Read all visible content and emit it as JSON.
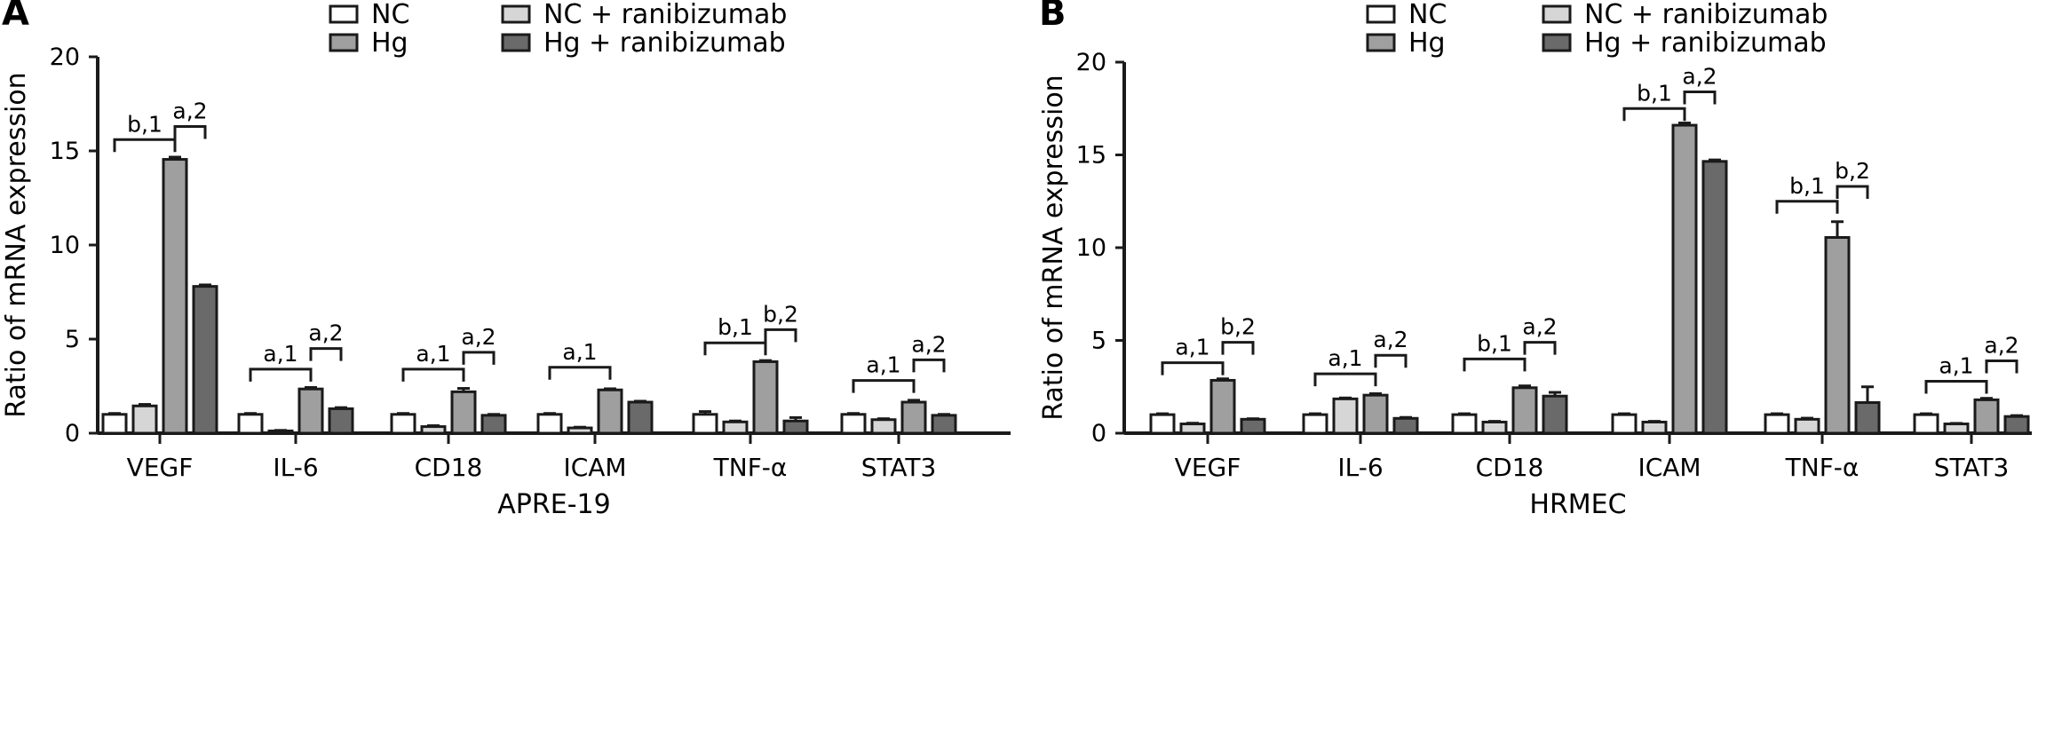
{
  "chart_data": [
    {
      "type": "bar",
      "panel_label": "A",
      "title": "",
      "xlabel": "APRE-19",
      "ylabel": "Ratio of  mRNA expression",
      "ylim": [
        0,
        20
      ],
      "yticks": [
        0,
        5,
        10,
        15,
        20
      ],
      "categories": [
        "VEGF",
        "IL-6",
        "CD18",
        "ICAM",
        "TNF-α",
        "STAT3"
      ],
      "series": [
        {
          "name": "NC",
          "color": "#ffffff",
          "values": [
            1.0,
            1.0,
            1.0,
            1.0,
            1.0,
            1.0
          ],
          "errors": [
            0.05,
            0.05,
            0.05,
            0.05,
            0.15,
            0.05
          ]
        },
        {
          "name": "NC + ranibizumab",
          "color": "#d6d6d6",
          "values": [
            1.45,
            0.12,
            0.35,
            0.28,
            0.6,
            0.72
          ],
          "errors": [
            0.08,
            0.03,
            0.05,
            0.04,
            0.05,
            0.05
          ]
        },
        {
          "name": "Hg",
          "color": "#9f9f9f",
          "values": [
            14.55,
            2.35,
            2.2,
            2.3,
            3.8,
            1.65
          ],
          "errors": [
            0.12,
            0.08,
            0.18,
            0.06,
            0.06,
            0.1
          ]
        },
        {
          "name": "Hg + ranibizumab",
          "color": "#6a6a6a",
          "values": [
            7.8,
            1.3,
            0.95,
            1.65,
            0.65,
            0.95
          ],
          "errors": [
            0.08,
            0.06,
            0.05,
            0.05,
            0.18,
            0.05
          ]
        }
      ],
      "significance": [
        {
          "category": 0,
          "from_series": 0,
          "to_series": 2,
          "level": 15.6,
          "label": "b,1"
        },
        {
          "category": 0,
          "from_series": 2,
          "to_series": 3,
          "level": 16.3,
          "label": "a,2"
        },
        {
          "category": 1,
          "from_series": 0,
          "to_series": 2,
          "level": 3.4,
          "label": "a,1"
        },
        {
          "category": 1,
          "from_series": 2,
          "to_series": 3,
          "level": 4.5,
          "label": "a,2"
        },
        {
          "category": 2,
          "from_series": 0,
          "to_series": 2,
          "level": 3.4,
          "label": "a,1"
        },
        {
          "category": 2,
          "from_series": 2,
          "to_series": 3,
          "level": 4.3,
          "label": "a,2"
        },
        {
          "category": 3,
          "from_series": 0,
          "to_series": 2,
          "level": 3.5,
          "label": "a,1"
        },
        {
          "category": 4,
          "from_series": 0,
          "to_series": 2,
          "level": 4.8,
          "label": "b,1"
        },
        {
          "category": 4,
          "from_series": 2,
          "to_series": 3,
          "level": 5.5,
          "label": "b,2"
        },
        {
          "category": 5,
          "from_series": 0,
          "to_series": 2,
          "level": 2.8,
          "label": "a,1"
        },
        {
          "category": 5,
          "from_series": 2,
          "to_series": 3,
          "level": 3.9,
          "label": "a,2"
        }
      ]
    },
    {
      "type": "bar",
      "panel_label": "B",
      "title": "",
      "xlabel": "HRMEC",
      "ylabel": "Ratio of  mRNA expression",
      "ylim": [
        0,
        20
      ],
      "yticks": [
        0,
        5,
        10,
        15,
        20
      ],
      "categories": [
        "VEGF",
        "IL-6",
        "CD18",
        "ICAM",
        "TNF-α",
        "STAT3"
      ],
      "series": [
        {
          "name": "NC",
          "color": "#ffffff",
          "values": [
            1.0,
            1.0,
            1.0,
            1.0,
            1.0,
            1.0
          ],
          "errors": [
            0.05,
            0.05,
            0.05,
            0.05,
            0.05,
            0.05
          ]
        },
        {
          "name": "NC + ranibizumab",
          "color": "#d6d6d6",
          "values": [
            0.5,
            1.85,
            0.6,
            0.6,
            0.75,
            0.5
          ],
          "errors": [
            0.04,
            0.05,
            0.04,
            0.04,
            0.06,
            0.03
          ]
        },
        {
          "name": "Hg",
          "color": "#9f9f9f",
          "values": [
            2.85,
            2.05,
            2.45,
            16.6,
            10.55,
            1.8
          ],
          "errors": [
            0.08,
            0.08,
            0.1,
            0.12,
            0.85,
            0.08
          ]
        },
        {
          "name": "Hg + ranibizumab",
          "color": "#6a6a6a",
          "values": [
            0.75,
            0.8,
            2.0,
            14.65,
            1.65,
            0.9
          ],
          "errors": [
            0.03,
            0.05,
            0.2,
            0.08,
            0.85,
            0.05
          ]
        }
      ],
      "significance": [
        {
          "category": 0,
          "from_series": 0,
          "to_series": 2,
          "level": 3.8,
          "label": "a,1"
        },
        {
          "category": 0,
          "from_series": 2,
          "to_series": 3,
          "level": 4.9,
          "label": "b,2"
        },
        {
          "category": 1,
          "from_series": 0,
          "to_series": 2,
          "level": 3.2,
          "label": "a,1"
        },
        {
          "category": 1,
          "from_series": 2,
          "to_series": 3,
          "level": 4.2,
          "label": "a,2"
        },
        {
          "category": 2,
          "from_series": 0,
          "to_series": 2,
          "level": 4.0,
          "label": "b,1"
        },
        {
          "category": 2,
          "from_series": 2,
          "to_series": 3,
          "level": 4.9,
          "label": "a,2"
        },
        {
          "category": 3,
          "from_series": 0,
          "to_series": 2,
          "level": 17.5,
          "label": "b,1"
        },
        {
          "category": 3,
          "from_series": 2,
          "to_series": 3,
          "level": 18.4,
          "label": "a,2"
        },
        {
          "category": 4,
          "from_series": 0,
          "to_series": 2,
          "level": 12.5,
          "label": "b,1"
        },
        {
          "category": 4,
          "from_series": 2,
          "to_series": 3,
          "level": 13.3,
          "label": "b,2"
        },
        {
          "category": 5,
          "from_series": 0,
          "to_series": 2,
          "level": 2.8,
          "label": "a,1"
        },
        {
          "category": 5,
          "from_series": 2,
          "to_series": 3,
          "level": 3.9,
          "label": "a,2"
        }
      ]
    }
  ]
}
